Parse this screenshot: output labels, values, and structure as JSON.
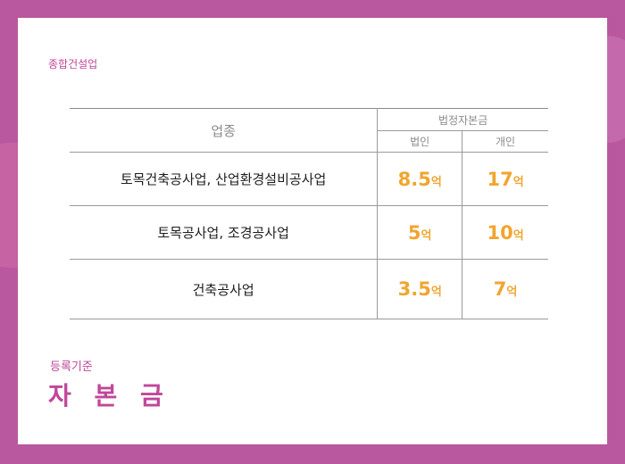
{
  "top_label": "종합건설업",
  "table": {
    "header_type": "업종",
    "header_group": "법정자본금",
    "header_corporate": "법인",
    "header_individual": "개인",
    "rows": [
      {
        "type": "토목건축공사업, 산업환경설비공사업",
        "corporate": "8.5",
        "corporate_unit": "억",
        "individual": "17",
        "individual_unit": "억"
      },
      {
        "type": "토목공사업, 조경공사업",
        "corporate": "5",
        "corporate_unit": "억",
        "individual": "10",
        "individual_unit": "억"
      },
      {
        "type": "건축공사업",
        "corporate": "3.5",
        "corporate_unit": "억",
        "individual": "7",
        "individual_unit": "억"
      }
    ]
  },
  "section": {
    "subtitle": "등록기준",
    "title": "자 본 금"
  },
  "colors": {
    "background": "#b9579f",
    "accent_pink": "#c0479a",
    "value_orange": "#f1a52f"
  }
}
